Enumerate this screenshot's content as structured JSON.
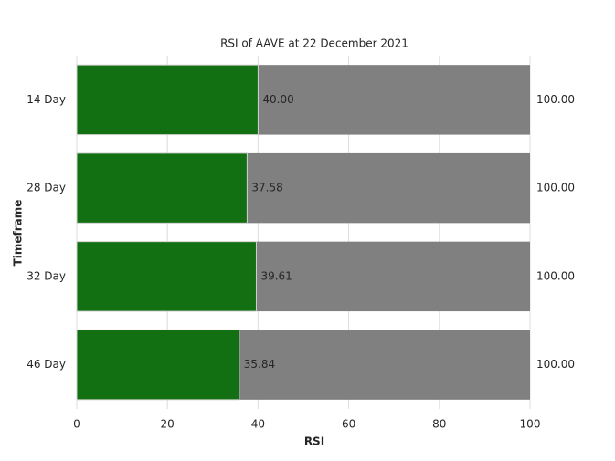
{
  "chart_data": {
    "type": "overlay_hbar",
    "title": "RSI of AAVE at 22 December 2021",
    "xlabel": "RSI",
    "ylabel": "Timeframe",
    "categories": [
      "14 Day",
      "28 Day",
      "32 Day",
      "46 Day"
    ],
    "series": [
      {
        "color": "#808080",
        "values": [
          100,
          100,
          100,
          100
        ],
        "value_labels": [
          "100.00",
          "100.00",
          "100.00",
          "100.00"
        ]
      },
      {
        "color": "#127012",
        "values": [
          40,
          37.58,
          39.61,
          35.84
        ],
        "value_labels": [
          "40.00",
          "37.58",
          "39.61",
          "35.84"
        ]
      }
    ],
    "xlim": [
      0,
      100
    ],
    "xticks": [
      0,
      20,
      40,
      60,
      80,
      100
    ],
    "grid": true
  }
}
